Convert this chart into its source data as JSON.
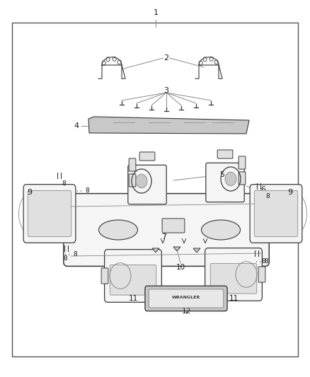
{
  "bg_color": "#ffffff",
  "lc": "#3a3a3a",
  "lc2": "#888888",
  "fc_part": "#f5f5f5",
  "fc_detail": "#e0e0e0",
  "fc_dark": "#c8c8c8",
  "label_color": "#1a1a1a",
  "line_color": "#888888",
  "figsize": [
    4.38,
    5.33
  ],
  "dpi": 100,
  "border": [
    0.038,
    0.055,
    0.924,
    0.885
  ]
}
